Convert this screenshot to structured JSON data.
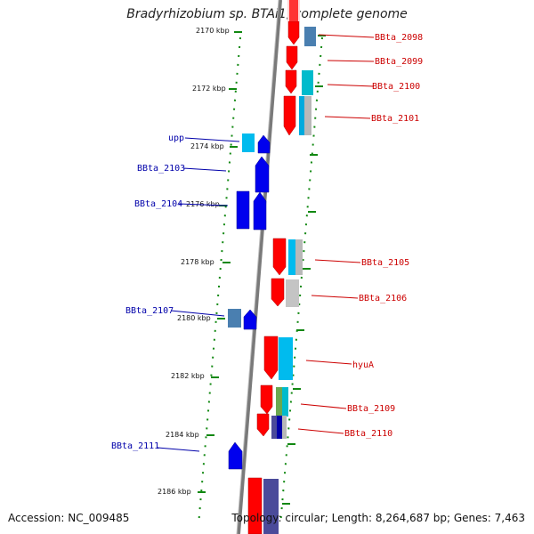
{
  "title": "Bradyrhizobium sp. BTAi1, complete genome",
  "accession": "Accession: NC_009485",
  "summary": "Topology: circular; Length: 8,264,687 bp; Genes: 7,463",
  "colors": {
    "forward": "#ff0000",
    "reverse": "#0000ee",
    "cyan": "#00bbee",
    "steel": "#4a7fb0",
    "grey": "#b8b8b8",
    "green": "#6aa84f",
    "navy": "#4b4b9a",
    "scale": "#118811",
    "backbone": "#7a7a7a"
  },
  "scale_labels": [
    "2170 kbp",
    "2172 kbp",
    "2174 kbp",
    "2176 kbp",
    "2178 kbp",
    "2180 kbp",
    "2182 kbp",
    "2184 kbp",
    "2186 kbp"
  ],
  "right_labels": [
    "BBta_2098",
    "BBta_2099",
    "BBta_2100",
    "BBta_2101",
    "BBta_2105",
    "BBta_2106",
    "hyuA",
    "BBta_2109",
    "BBta_2110"
  ],
  "left_labels": [
    "upp",
    "BBta_2103",
    "BBta_2104",
    "BBta_2107",
    "BBta_2111"
  ]
}
